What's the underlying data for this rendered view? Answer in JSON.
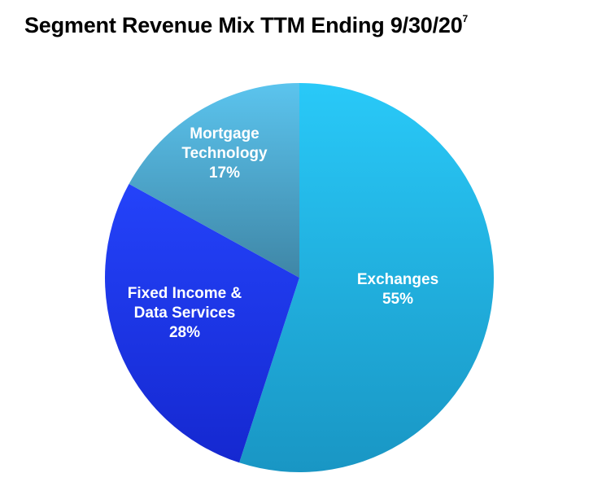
{
  "chart_data": {
    "type": "pie",
    "title": "Segment Revenue Mix TTM Ending 9/30/20",
    "title_footnote": "7",
    "start_angle_deg": 0,
    "direction": "clockwise",
    "slices": [
      {
        "key": "exchanges",
        "label_lines": [
          "Exchanges"
        ],
        "percent_label": "55%",
        "value": 55,
        "color_top": "#29C9F8",
        "color_bottom": "#1996C4"
      },
      {
        "key": "fixed-income",
        "label_lines": [
          "Fixed Income &",
          "Data Services"
        ],
        "percent_label": "28%",
        "value": 28,
        "color_top": "#2443FA",
        "color_bottom": "#1528D0"
      },
      {
        "key": "mortgage",
        "label_lines": [
          "Mortgage",
          "Technology"
        ],
        "percent_label": "17%",
        "value": 17,
        "color_top": "#5BC4EE",
        "color_bottom": "#3F86A6"
      }
    ]
  }
}
